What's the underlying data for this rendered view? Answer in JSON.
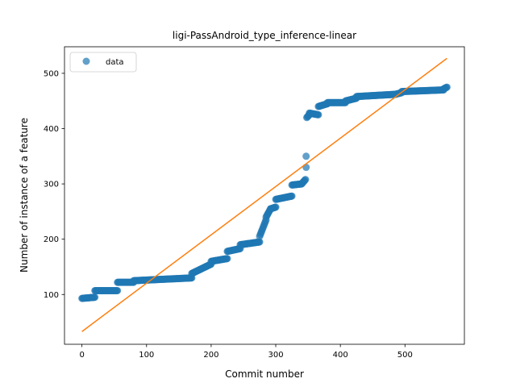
{
  "chart_data": {
    "type": "scatter",
    "title": "ligi-PassAndroid_type_inference-linear",
    "xlabel": "Commit number",
    "ylabel": "Number of instance of a feature",
    "xlim": [
      -27,
      592
    ],
    "ylim": [
      10,
      548
    ],
    "xticks": [
      0,
      100,
      200,
      300,
      400,
      500
    ],
    "yticks": [
      100,
      200,
      300,
      400,
      500
    ],
    "grid": false,
    "legend": {
      "placement": "top-left",
      "entries": [
        "data"
      ]
    },
    "colors": {
      "data": "#1f77b4",
      "fit": "#ff7f0e"
    },
    "series": [
      {
        "name": "data",
        "kind": "scatter",
        "segments": [
          {
            "from": [
              0,
              93
            ],
            "to": [
              20,
              95
            ]
          },
          {
            "from": [
              20,
              107
            ],
            "to": [
              55,
              107
            ]
          },
          {
            "from": [
              55,
              122
            ],
            "to": [
              80,
              122
            ]
          },
          {
            "from": [
              80,
              125
            ],
            "to": [
              170,
              130
            ]
          },
          {
            "from": [
              170,
              138
            ],
            "to": [
              200,
              155
            ]
          },
          {
            "from": [
              200,
              160
            ],
            "to": [
              225,
              165
            ]
          },
          {
            "from": [
              225,
              178
            ],
            "to": [
              245,
              183
            ]
          },
          {
            "from": [
              245,
              190
            ],
            "to": [
              275,
              195
            ]
          },
          {
            "from": [
              275,
              205
            ],
            "to": [
              285,
              235
            ]
          },
          {
            "from": [
              285,
              240
            ],
            "to": [
              292,
              255
            ]
          },
          {
            "from": [
              292,
              255
            ],
            "to": [
              300,
              258
            ]
          },
          {
            "from": [
              300,
              272
            ],
            "to": [
              325,
              278
            ]
          },
          {
            "from": [
              325,
              298
            ],
            "to": [
              340,
              300
            ]
          },
          {
            "from": [
              340,
              300
            ],
            "to": [
              346,
              308
            ]
          },
          {
            "from": [
              348,
              420
            ],
            "to": [
              352,
              425
            ]
          },
          {
            "from": [
              352,
              428
            ],
            "to": [
              366,
              425
            ]
          },
          {
            "from": [
              366,
              440
            ],
            "to": [
              380,
              445
            ]
          },
          {
            "from": [
              380,
              447
            ],
            "to": [
              408,
              447
            ]
          },
          {
            "from": [
              408,
              450
            ],
            "to": [
              425,
              455
            ]
          },
          {
            "from": [
              425,
              458
            ],
            "to": [
              485,
              462
            ]
          },
          {
            "from": [
              485,
              462
            ],
            "to": [
              495,
              465
            ]
          },
          {
            "from": [
              495,
              467
            ],
            "to": [
              560,
              470
            ]
          },
          {
            "from": [
              560,
              472
            ],
            "to": [
              565,
              475
            ]
          }
        ],
        "outliers": [
          [
            347,
            330
          ],
          [
            347,
            350
          ]
        ]
      },
      {
        "kind": "line",
        "x": [
          0,
          565
        ],
        "y": [
          33,
          527
        ]
      }
    ]
  }
}
